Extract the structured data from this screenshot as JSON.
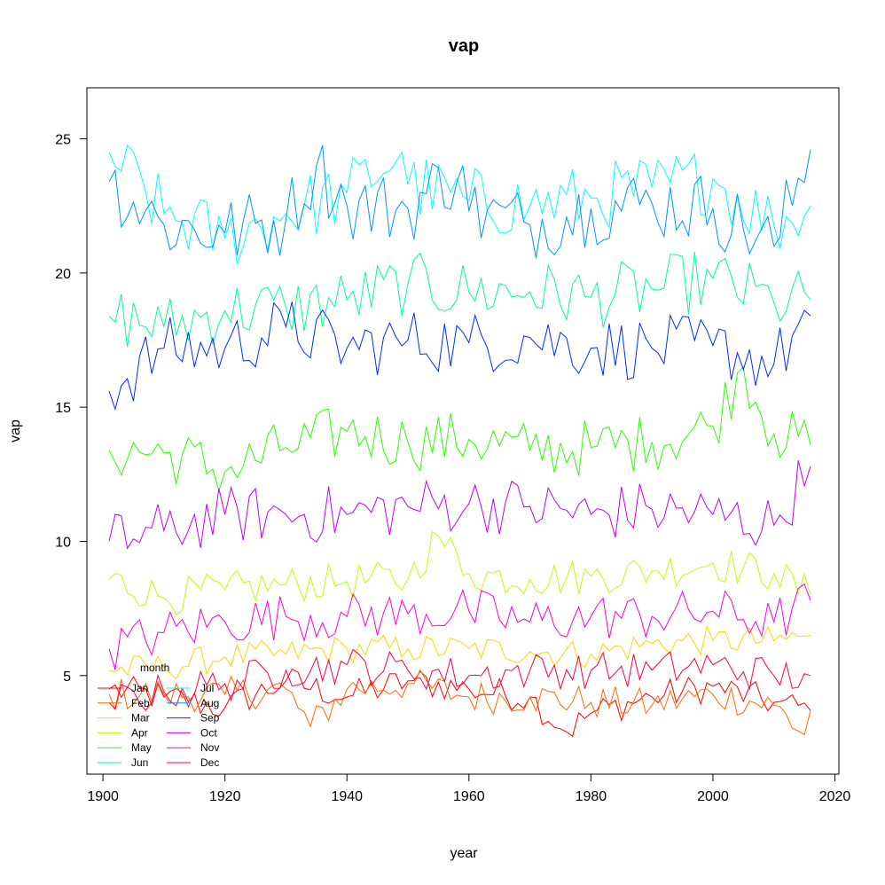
{
  "chart_data": {
    "type": "line",
    "title": "vap",
    "xlabel": "year",
    "ylabel": "vap",
    "xlim": [
      1901,
      2016
    ],
    "ylim": [
      1.3,
      27
    ],
    "x_ticks": [
      1900,
      1920,
      1940,
      1960,
      1980,
      2000,
      2020
    ],
    "y_ticks": [
      5,
      10,
      15,
      20,
      25
    ],
    "grid": false,
    "legend": {
      "title": "month",
      "placement": "bottom-left"
    },
    "year_start": 1901,
    "year_end": 2016,
    "series": [
      {
        "name": "Jan",
        "color": "#FF0000",
        "anchors": [
          [
            1901,
            4.5
          ],
          [
            1910,
            4.2
          ],
          [
            1920,
            3.8
          ],
          [
            1930,
            4.8
          ],
          [
            1940,
            4.2
          ],
          [
            1950,
            4.8
          ],
          [
            1960,
            4.5
          ],
          [
            1970,
            4.2
          ],
          [
            1976,
            2.9
          ],
          [
            1980,
            3.6
          ],
          [
            1990,
            4.2
          ],
          [
            2000,
            4.6
          ],
          [
            2010,
            4.0
          ],
          [
            2016,
            3.7
          ]
        ]
      },
      {
        "name": "Feb",
        "color": "#FF6A00",
        "anchors": [
          [
            1901,
            4.3
          ],
          [
            1910,
            4.3
          ],
          [
            1920,
            4.3
          ],
          [
            1930,
            4.5
          ],
          [
            1934,
            3.1
          ],
          [
            1940,
            4.5
          ],
          [
            1950,
            4.7
          ],
          [
            1960,
            4.2
          ],
          [
            1970,
            4.2
          ],
          [
            1980,
            4.0
          ],
          [
            1990,
            3.9
          ],
          [
            2000,
            4.3
          ],
          [
            2010,
            3.9
          ],
          [
            2015,
            2.8
          ],
          [
            2016,
            3.7
          ]
        ]
      },
      {
        "name": "Mar",
        "color": "#FFD500",
        "anchors": [
          [
            1901,
            5.2
          ],
          [
            1910,
            5.3
          ],
          [
            1920,
            5.7
          ],
          [
            1930,
            5.8
          ],
          [
            1940,
            6.0
          ],
          [
            1950,
            6.0
          ],
          [
            1960,
            6.0
          ],
          [
            1970,
            5.9
          ],
          [
            1980,
            5.8
          ],
          [
            1990,
            6.2
          ],
          [
            2000,
            6.3
          ],
          [
            2010,
            6.3
          ],
          [
            2016,
            6.5
          ]
        ]
      },
      {
        "name": "Apr",
        "color": "#BFFF00",
        "anchors": [
          [
            1901,
            8.6
          ],
          [
            1910,
            7.9
          ],
          [
            1920,
            8.2
          ],
          [
            1930,
            8.4
          ],
          [
            1940,
            8.5
          ],
          [
            1950,
            8.6
          ],
          [
            1955,
            10.2
          ],
          [
            1960,
            8.8
          ],
          [
            1970,
            8.6
          ],
          [
            1980,
            8.7
          ],
          [
            1990,
            8.9
          ],
          [
            2000,
            9.2
          ],
          [
            2010,
            8.8
          ],
          [
            2016,
            8.0
          ]
        ]
      },
      {
        "name": "May",
        "color": "#2AFF00",
        "anchors": [
          [
            1901,
            13.4
          ],
          [
            1910,
            13.3
          ],
          [
            1920,
            12.6
          ],
          [
            1930,
            13.5
          ],
          [
            1940,
            14.1
          ],
          [
            1950,
            13.7
          ],
          [
            1960,
            13.8
          ],
          [
            1970,
            13.4
          ],
          [
            1980,
            13.5
          ],
          [
            1990,
            13.7
          ],
          [
            2000,
            14.3
          ],
          [
            2005,
            16.5
          ],
          [
            2010,
            14.0
          ],
          [
            2016,
            13.6
          ]
        ]
      },
      {
        "name": "Jun",
        "color": "#00FF95",
        "anchors": [
          [
            1901,
            18.4
          ],
          [
            1910,
            18.0
          ],
          [
            1920,
            18.6
          ],
          [
            1930,
            18.7
          ],
          [
            1940,
            19.0
          ],
          [
            1950,
            19.6
          ],
          [
            1960,
            19.3
          ],
          [
            1970,
            19.3
          ],
          [
            1980,
            19.1
          ],
          [
            1990,
            19.4
          ],
          [
            2000,
            19.8
          ],
          [
            2010,
            18.9
          ],
          [
            2016,
            19.0
          ]
        ]
      },
      {
        "name": "Jul",
        "color": "#00FFFF",
        "anchors": [
          [
            1901,
            24.5
          ],
          [
            1910,
            22.2
          ],
          [
            1920,
            21.3
          ],
          [
            1930,
            22.2
          ],
          [
            1940,
            23.0
          ],
          [
            1949,
            24.5
          ],
          [
            1950,
            23.3
          ],
          [
            1960,
            22.7
          ],
          [
            1970,
            22.5
          ],
          [
            1980,
            22.8
          ],
          [
            1990,
            23.2
          ],
          [
            2000,
            23.5
          ],
          [
            2010,
            21.8
          ],
          [
            2016,
            22.5
          ]
        ]
      },
      {
        "name": "Aug",
        "color": "#0095FF",
        "anchors": [
          [
            1901,
            23.4
          ],
          [
            1910,
            21.8
          ],
          [
            1920,
            21.5
          ],
          [
            1930,
            22.0
          ],
          [
            1935,
            24.0
          ],
          [
            1940,
            22.5
          ],
          [
            1950,
            22.4
          ],
          [
            1959,
            24.0
          ],
          [
            1960,
            22.3
          ],
          [
            1970,
            21.8
          ],
          [
            1980,
            22.4
          ],
          [
            1990,
            22.6
          ],
          [
            2000,
            22.4
          ],
          [
            2010,
            21.0
          ],
          [
            2016,
            24.6
          ]
        ]
      },
      {
        "name": "Sep",
        "color": "#002BFF",
        "anchors": [
          [
            1901,
            15.6
          ],
          [
            1910,
            17.2
          ],
          [
            1920,
            17.2
          ],
          [
            1930,
            18.0
          ],
          [
            1940,
            17.2
          ],
          [
            1950,
            17.5
          ],
          [
            1960,
            17.4
          ],
          [
            1970,
            17.6
          ],
          [
            1980,
            17.2
          ],
          [
            1990,
            17.2
          ],
          [
            2000,
            17.3
          ],
          [
            2010,
            16.6
          ],
          [
            2016,
            18.4
          ]
        ]
      },
      {
        "name": "Oct",
        "color": "#BF00FF",
        "anchors": [
          [
            1901,
            10.0
          ],
          [
            1910,
            10.4
          ],
          [
            1920,
            11.0
          ],
          [
            1930,
            11.0
          ],
          [
            1940,
            11.0
          ],
          [
            1950,
            11.3
          ],
          [
            1960,
            11.4
          ],
          [
            1970,
            11.3
          ],
          [
            1980,
            11.0
          ],
          [
            1990,
            11.2
          ],
          [
            2000,
            11.0
          ],
          [
            2010,
            10.6
          ],
          [
            2016,
            12.8
          ]
        ]
      },
      {
        "name": "Nov",
        "color": "#FF00D4",
        "anchors": [
          [
            1901,
            6.0
          ],
          [
            1910,
            6.6
          ],
          [
            1920,
            7.0
          ],
          [
            1930,
            7.2
          ],
          [
            1940,
            7.2
          ],
          [
            1950,
            7.3
          ],
          [
            1960,
            7.4
          ],
          [
            1970,
            7.0
          ],
          [
            1980,
            7.2
          ],
          [
            1990,
            7.2
          ],
          [
            2000,
            7.4
          ],
          [
            2010,
            7.0
          ],
          [
            2016,
            7.8
          ]
        ]
      },
      {
        "name": "Dec",
        "color": "#FF0040",
        "anchors": [
          [
            1901,
            4.0
          ],
          [
            1910,
            4.4
          ],
          [
            1920,
            4.7
          ],
          [
            1930,
            5.2
          ],
          [
            1940,
            5.4
          ],
          [
            1950,
            5.2
          ],
          [
            1960,
            5.0
          ],
          [
            1970,
            5.2
          ],
          [
            1980,
            5.2
          ],
          [
            1990,
            5.2
          ],
          [
            2000,
            5.4
          ],
          [
            2010,
            5.0
          ],
          [
            2016,
            5.0
          ]
        ]
      }
    ]
  }
}
